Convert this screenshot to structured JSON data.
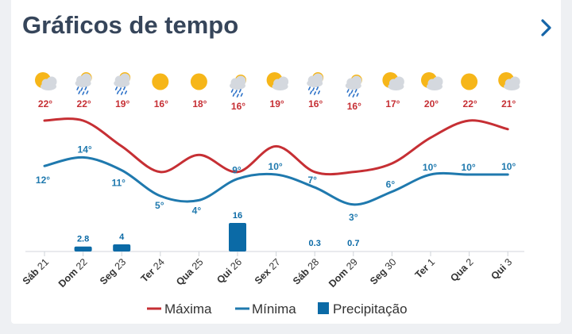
{
  "header": {
    "title": "Gráficos de tempo",
    "chevron_icon": "chevron-right-icon"
  },
  "colors": {
    "max": "#c62f34",
    "min": "#1f79ae",
    "precip": "#0b6aa6",
    "title": "#36455a",
    "sun": "#f6b619",
    "cloud": "#d4d8de",
    "rain": "#2d72c8"
  },
  "legend": {
    "max": "Máxima",
    "min": "Mínima",
    "precip": "Precipitação"
  },
  "chart_data": {
    "type": "line",
    "categories": [
      "Sáb 21",
      "Dom 22",
      "Seg 23",
      "Ter 24",
      "Qua 25",
      "Qui 26",
      "Sex 27",
      "Sáb 28",
      "Dom 29",
      "Seg 30",
      "Ter 1",
      "Qua 2",
      "Qui 3"
    ],
    "days": [
      {
        "w": "Sáb",
        "n": "21"
      },
      {
        "w": "Dom",
        "n": "22"
      },
      {
        "w": "Seg",
        "n": "23"
      },
      {
        "w": "Ter",
        "n": "24"
      },
      {
        "w": "Qua",
        "n": "25"
      },
      {
        "w": "Qui",
        "n": "26"
      },
      {
        "w": "Sex",
        "n": "27"
      },
      {
        "w": "Sáb",
        "n": "28"
      },
      {
        "w": "Dom",
        "n": "29"
      },
      {
        "w": "Seg",
        "n": "30"
      },
      {
        "w": "Ter",
        "n": "1"
      },
      {
        "w": "Qua",
        "n": "2"
      },
      {
        "w": "Qui",
        "n": "3"
      }
    ],
    "icons": [
      "partly-cloudy-icon",
      "rain-icon",
      "rain-icon",
      "sun-icon",
      "sun-icon",
      "rain-icon",
      "partly-cloudy-icon",
      "rain-icon",
      "rain-icon",
      "partly-cloudy-icon",
      "partly-cloudy-icon",
      "sun-icon",
      "partly-cloudy-icon"
    ],
    "series": [
      {
        "name": "Máxima",
        "values": [
          22,
          22,
          19,
          16,
          18,
          16,
          19,
          16,
          16,
          17,
          20,
          22,
          21
        ],
        "labels": [
          "22°",
          "22°",
          "19°",
          "16°",
          "18°",
          "16°",
          "19°",
          "16°",
          "16°",
          "17°",
          "20°",
          "22°",
          "21°"
        ]
      },
      {
        "name": "Mínima",
        "values": [
          12,
          14,
          11,
          5,
          4,
          9,
          10,
          7,
          3,
          6,
          10,
          10,
          10
        ],
        "labels": [
          "12°",
          "14°",
          "11°",
          "5°",
          "4°",
          "9°",
          "10°",
          "7°",
          "3°",
          "6°",
          "10°",
          "10°",
          "10°"
        ]
      },
      {
        "name": "Precipitação",
        "type": "bar",
        "values": [
          0,
          2.8,
          4,
          0,
          0,
          16,
          0,
          0.3,
          0.7,
          0,
          0,
          0,
          0
        ],
        "labels": [
          "",
          "2.8",
          "4",
          "",
          "",
          "16",
          "",
          "0.3",
          "0.7",
          "",
          "",
          "",
          ""
        ]
      }
    ]
  }
}
